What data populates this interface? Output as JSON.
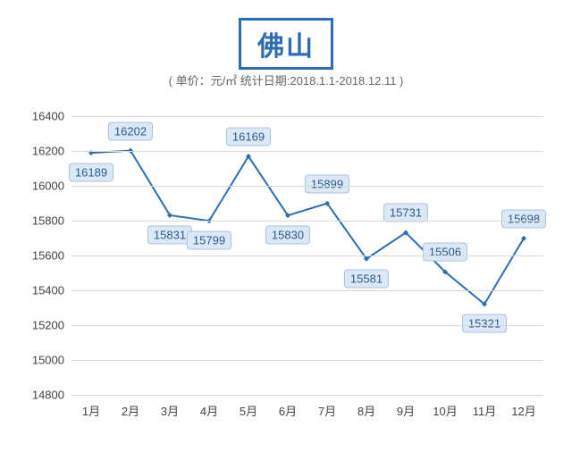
{
  "header": {
    "title": "佛山",
    "subtitle": "( 单价：元/㎡ 统计日期:2018.1.1-2018.12.11 )"
  },
  "chart": {
    "type": "line",
    "x_categories": [
      "1月",
      "2月",
      "3月",
      "4月",
      "5月",
      "6月",
      "7月",
      "8月",
      "9月",
      "10月",
      "11月",
      "12月"
    ],
    "values": [
      16189,
      16202,
      15831,
      15799,
      16169,
      15830,
      15899,
      15581,
      15731,
      15506,
      15321,
      15698
    ],
    "label_positions": [
      "below",
      "above",
      "below",
      "below",
      "above",
      "below",
      "above",
      "below",
      "above",
      "above",
      "below",
      "above"
    ],
    "ylim": [
      14800,
      16400
    ],
    "ytick_step": 200,
    "yticks": [
      14800,
      15000,
      15200,
      15400,
      15600,
      15800,
      16000,
      16200,
      16400
    ],
    "line_color": "#2e6db3",
    "marker_color": "#2e6db3",
    "marker_type": "diamond",
    "marker_size": 6,
    "line_width": 2,
    "grid_color": "#d9d9d9",
    "background_color": "#ffffff",
    "axis_text_color": "#444444",
    "axis_fontsize": 13,
    "data_label_bg": "#dce8f6",
    "data_label_border": "#a8c2e0",
    "data_label_color": "#2e5a8c",
    "data_label_fontsize": 13,
    "title_color": "#2e6db3",
    "title_fontsize": 30,
    "subtitle_color": "#666666",
    "subtitle_fontsize": 13
  }
}
